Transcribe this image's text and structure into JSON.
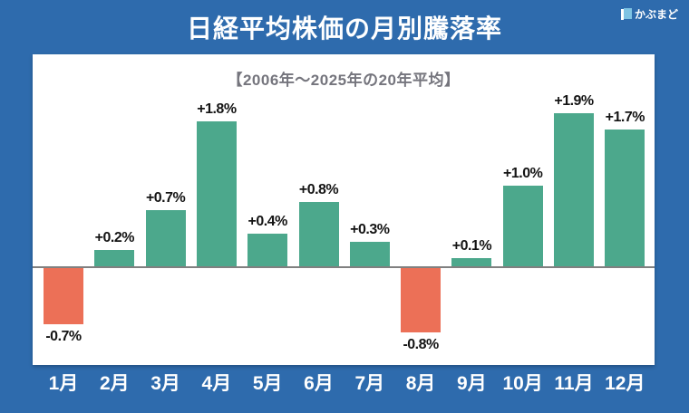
{
  "header": {
    "title": "日経平均株価の月別騰落率",
    "logo_text": "かぶまど"
  },
  "chart_data": {
    "type": "bar",
    "title": "日経平均株価の月別騰落率",
    "subtitle": "【2006年〜2025年の20年平均】",
    "categories": [
      "1月",
      "2月",
      "3月",
      "4月",
      "5月",
      "6月",
      "7月",
      "8月",
      "9月",
      "10月",
      "11月",
      "12月"
    ],
    "values": [
      -0.7,
      0.2,
      0.7,
      1.8,
      0.4,
      0.8,
      0.3,
      -0.8,
      0.1,
      1.0,
      1.9,
      1.7
    ],
    "labels": [
      "-0.7%",
      "+0.2%",
      "+0.7%",
      "+1.8%",
      "+0.4%",
      "+0.8%",
      "+0.3%",
      "-0.8%",
      "+0.1%",
      "+1.0%",
      "+1.9%",
      "+1.7%"
    ],
    "unit": "%",
    "xlabel": "",
    "ylabel": "",
    "ylim": [
      -1.0,
      2.4
    ],
    "grid": false,
    "legend": null,
    "baseline": 0,
    "colors": {
      "positive": "#4ca88c",
      "negative": "#ec7057",
      "baseline_line": "#808080"
    }
  },
  "colors": {
    "background": "#2e6bad",
    "card": "#ffffff",
    "title_text": "#ffffff",
    "subtitle_text": "#75757d",
    "value_label_text": "#141414",
    "month_label_text": "#ffffff",
    "logo_icon_blue": "#7ec3e3"
  }
}
